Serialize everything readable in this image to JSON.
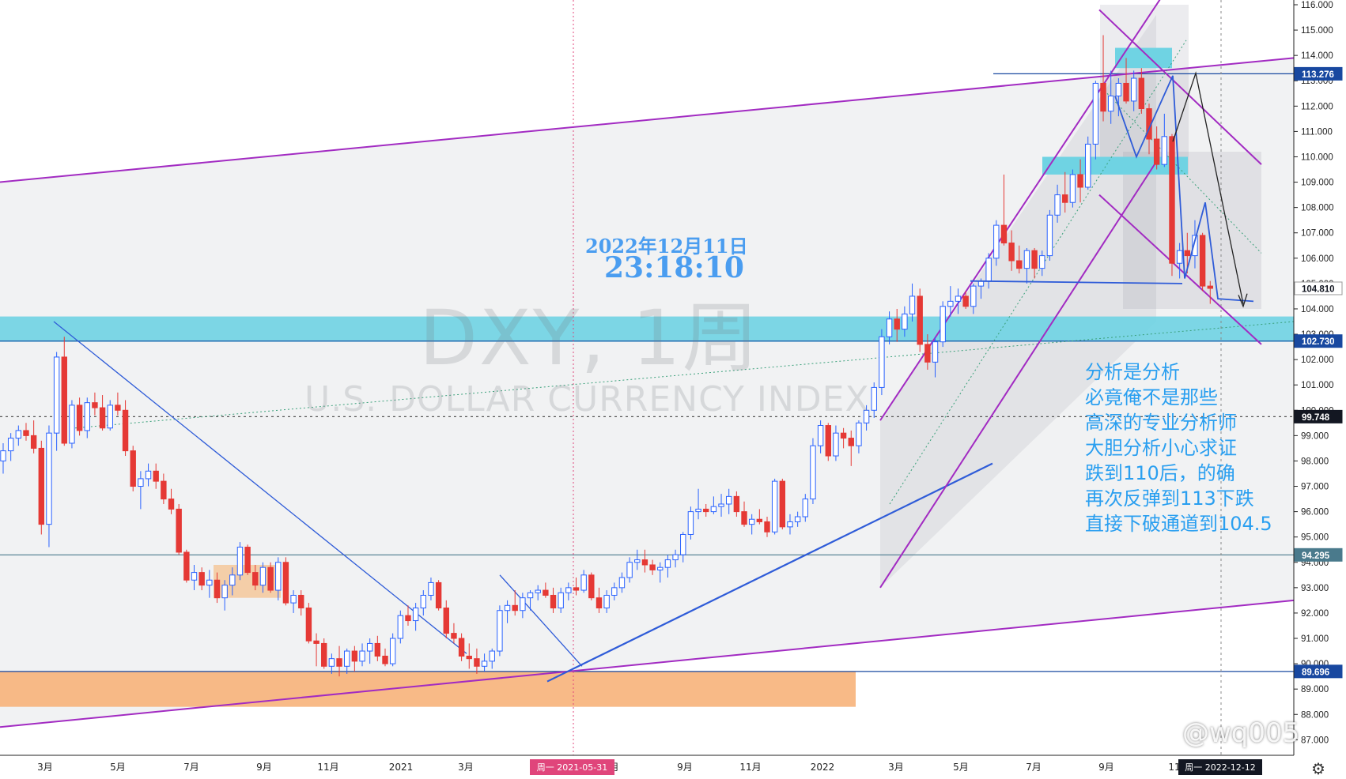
{
  "chart_data": {
    "type": "candlestick",
    "symbol_watermark": "DXY, 1周",
    "name_watermark": "U.S. DOLLAR CURRENCY INDEX",
    "ylim": [
      86.2,
      116.0
    ],
    "y_ticks": [
      "87.000",
      "88.000",
      "89.000",
      "90.000",
      "91.000",
      "92.000",
      "93.000",
      "94.000",
      "95.000",
      "96.000",
      "97.000",
      "98.000",
      "99.000",
      "100.000",
      "101.000",
      "102.000",
      "103.000",
      "104.000",
      "105.000",
      "106.000",
      "107.000",
      "108.000",
      "109.000",
      "110.000",
      "111.000",
      "112.000",
      "113.000",
      "114.000",
      "115.000",
      "116.000"
    ],
    "price_badges": [
      {
        "label": "113.276",
        "value": 113.276,
        "color": "#1848a0"
      },
      {
        "label": "104.810",
        "value": 104.81,
        "color": "#ffffff"
      },
      {
        "label": "102.730",
        "value": 102.73,
        "color": "#1848a0"
      },
      {
        "label": "99.748",
        "value": 99.748,
        "color": "#131722"
      },
      {
        "label": "94.295",
        "value": 94.295,
        "color": "#4a7a8c"
      },
      {
        "label": "89.696",
        "value": 89.696,
        "color": "#1848a0"
      }
    ],
    "x_ticks": [
      "3月",
      "5月",
      "7月",
      "9月",
      "11月",
      "2021",
      "3月",
      "5月",
      "7月",
      "9月",
      "11月",
      "2022",
      "3月",
      "5月",
      "7月",
      "9月",
      "11"
    ],
    "crosshair_labels": [
      "周一 2021-05-31",
      "周一 2022-12-12"
    ],
    "candles": [
      [
        98.0,
        98.7,
        97.5,
        98.4
      ],
      [
        98.4,
        99.1,
        98.0,
        98.9
      ],
      [
        98.9,
        99.4,
        98.6,
        99.2
      ],
      [
        99.2,
        99.5,
        98.8,
        99.0
      ],
      [
        99.0,
        99.6,
        98.3,
        98.5
      ],
      [
        98.5,
        98.8,
        95.1,
        95.5
      ],
      [
        95.5,
        99.4,
        94.6,
        99.1
      ],
      [
        99.1,
        102.3,
        98.4,
        102.1
      ],
      [
        102.1,
        102.9,
        98.6,
        98.7
      ],
      [
        98.7,
        100.4,
        98.5,
        100.2
      ],
      [
        100.2,
        100.5,
        99.0,
        99.2
      ],
      [
        99.2,
        100.5,
        98.9,
        100.3
      ],
      [
        100.3,
        100.7,
        99.8,
        100.1
      ],
      [
        100.1,
        100.6,
        99.2,
        99.3
      ],
      [
        99.3,
        100.4,
        99.2,
        100.2
      ],
      [
        100.2,
        100.7,
        99.8,
        100.0
      ],
      [
        100.0,
        100.4,
        98.2,
        98.4
      ],
      [
        98.4,
        98.6,
        96.8,
        97.0
      ],
      [
        97.0,
        97.6,
        96.1,
        97.3
      ],
      [
        97.3,
        97.9,
        97.0,
        97.6
      ],
      [
        97.6,
        97.9,
        96.9,
        97.2
      ],
      [
        97.2,
        97.5,
        96.3,
        96.5
      ],
      [
        96.5,
        96.9,
        95.9,
        96.1
      ],
      [
        96.1,
        96.3,
        94.3,
        94.4
      ],
      [
        94.4,
        94.5,
        93.2,
        93.3
      ],
      [
        93.3,
        93.9,
        92.9,
        93.6
      ],
      [
        93.6,
        93.8,
        92.9,
        93.1
      ],
      [
        93.1,
        93.7,
        92.6,
        93.3
      ],
      [
        93.3,
        93.6,
        92.4,
        92.6
      ],
      [
        92.6,
        93.3,
        92.1,
        93.1
      ],
      [
        93.1,
        93.8,
        92.7,
        93.5
      ],
      [
        93.5,
        94.8,
        93.3,
        94.6
      ],
      [
        94.6,
        94.7,
        93.5,
        93.6
      ],
      [
        93.6,
        93.9,
        92.9,
        93.1
      ],
      [
        93.1,
        94.0,
        92.8,
        93.8
      ],
      [
        93.8,
        94.0,
        92.8,
        92.9
      ],
      [
        92.9,
        94.2,
        92.5,
        94.0
      ],
      [
        94.0,
        94.2,
        92.3,
        92.4
      ],
      [
        92.4,
        92.9,
        92.0,
        92.7
      ],
      [
        92.7,
        92.9,
        91.9,
        92.2
      ],
      [
        92.2,
        92.4,
        90.8,
        90.9
      ],
      [
        90.9,
        91.2,
        89.9,
        90.8
      ],
      [
        90.8,
        91.0,
        89.8,
        89.9
      ],
      [
        89.9,
        90.4,
        89.6,
        90.2
      ],
      [
        90.2,
        90.7,
        89.5,
        89.9
      ],
      [
        89.9,
        90.6,
        89.6,
        90.5
      ],
      [
        90.5,
        90.7,
        89.7,
        90.1
      ],
      [
        90.1,
        90.8,
        89.9,
        90.5
      ],
      [
        90.5,
        91.0,
        90.0,
        90.8
      ],
      [
        90.8,
        91.1,
        90.1,
        90.3
      ],
      [
        90.3,
        90.6,
        89.9,
        90.0
      ],
      [
        90.0,
        91.2,
        89.9,
        91.0
      ],
      [
        91.0,
        92.1,
        90.8,
        91.9
      ],
      [
        91.9,
        92.3,
        91.5,
        91.7
      ],
      [
        91.7,
        92.4,
        91.3,
        92.2
      ],
      [
        92.2,
        92.9,
        91.9,
        92.7
      ],
      [
        92.7,
        93.4,
        92.5,
        93.2
      ],
      [
        93.2,
        93.3,
        92.1,
        92.2
      ],
      [
        92.2,
        92.5,
        91.0,
        91.2
      ],
      [
        91.2,
        91.6,
        90.8,
        91.0
      ],
      [
        91.0,
        91.2,
        90.1,
        90.3
      ],
      [
        90.3,
        90.8,
        89.8,
        90.2
      ],
      [
        90.2,
        90.6,
        89.6,
        89.9
      ],
      [
        89.9,
        90.4,
        89.7,
        90.1
      ],
      [
        90.1,
        90.6,
        89.8,
        90.5
      ],
      [
        90.5,
        92.3,
        90.3,
        92.1
      ],
      [
        92.1,
        92.5,
        91.6,
        92.3
      ],
      [
        92.3,
        92.9,
        91.9,
        92.1
      ],
      [
        92.1,
        92.8,
        91.8,
        92.6
      ],
      [
        92.6,
        92.9,
        92.1,
        92.8
      ],
      [
        92.8,
        93.1,
        92.5,
        92.9
      ],
      [
        92.9,
        93.2,
        92.6,
        92.7
      ],
      [
        92.7,
        93.0,
        92.0,
        92.2
      ],
      [
        92.2,
        93.0,
        92.0,
        92.8
      ],
      [
        92.8,
        93.2,
        92.5,
        93.0
      ],
      [
        93.0,
        93.4,
        92.7,
        92.9
      ],
      [
        92.9,
        93.7,
        92.8,
        93.5
      ],
      [
        93.5,
        93.6,
        92.5,
        92.6
      ],
      [
        92.6,
        93.0,
        92.0,
        92.2
      ],
      [
        92.2,
        92.9,
        92.0,
        92.7
      ],
      [
        92.7,
        93.2,
        92.5,
        93.0
      ],
      [
        93.0,
        93.6,
        92.8,
        93.4
      ],
      [
        93.4,
        94.2,
        93.2,
        94.0
      ],
      [
        94.0,
        94.5,
        93.7,
        94.1
      ],
      [
        94.1,
        94.5,
        93.6,
        93.9
      ],
      [
        93.9,
        94.1,
        93.5,
        93.7
      ],
      [
        93.7,
        94.0,
        93.2,
        93.8
      ],
      [
        93.8,
        94.3,
        93.4,
        94.1
      ],
      [
        94.1,
        94.5,
        93.8,
        94.3
      ],
      [
        94.3,
        95.2,
        94.0,
        95.1
      ],
      [
        95.1,
        96.2,
        94.9,
        96.0
      ],
      [
        96.0,
        96.9,
        95.7,
        96.1
      ],
      [
        96.1,
        96.3,
        95.8,
        96.0
      ],
      [
        96.0,
        96.6,
        95.9,
        96.2
      ],
      [
        96.2,
        96.7,
        95.8,
        96.3
      ],
      [
        96.3,
        96.9,
        95.9,
        96.6
      ],
      [
        96.6,
        96.8,
        95.8,
        96.0
      ],
      [
        96.0,
        96.4,
        95.4,
        95.5
      ],
      [
        95.5,
        95.9,
        95.1,
        95.7
      ],
      [
        95.7,
        96.1,
        95.5,
        95.6
      ],
      [
        95.6,
        95.8,
        95.0,
        95.2
      ],
      [
        95.2,
        97.3,
        95.1,
        97.2
      ],
      [
        97.2,
        97.3,
        95.3,
        95.4
      ],
      [
        95.4,
        95.9,
        95.1,
        95.6
      ],
      [
        95.6,
        96.0,
        95.4,
        95.8
      ],
      [
        95.8,
        96.7,
        95.6,
        96.5
      ],
      [
        96.5,
        98.9,
        96.3,
        98.6
      ],
      [
        98.6,
        99.6,
        98.3,
        99.4
      ],
      [
        99.4,
        99.5,
        98.0,
        98.2
      ],
      [
        98.2,
        99.4,
        98.0,
        99.1
      ],
      [
        99.1,
        99.3,
        98.5,
        98.9
      ],
      [
        98.9,
        99.2,
        97.8,
        98.6
      ],
      [
        98.6,
        99.6,
        98.3,
        99.5
      ],
      [
        99.5,
        100.2,
        99.2,
        100.0
      ],
      [
        100.0,
        101.1,
        99.7,
        100.9
      ],
      [
        100.9,
        103.2,
        100.6,
        102.9
      ],
      [
        102.9,
        103.9,
        102.6,
        103.6
      ],
      [
        103.6,
        104.0,
        102.7,
        103.2
      ],
      [
        103.2,
        104.1,
        102.9,
        103.8
      ],
      [
        103.8,
        105.0,
        103.5,
        104.5
      ],
      [
        104.5,
        104.8,
        102.3,
        102.6
      ],
      [
        102.6,
        103.0,
        101.6,
        101.9
      ],
      [
        101.9,
        102.9,
        101.3,
        102.7
      ],
      [
        102.7,
        104.3,
        102.5,
        104.1
      ],
      [
        104.1,
        104.9,
        103.7,
        104.3
      ],
      [
        104.3,
        104.8,
        103.8,
        104.5
      ],
      [
        104.5,
        104.7,
        104.0,
        104.1
      ],
      [
        104.1,
        105.0,
        103.8,
        104.9
      ],
      [
        104.9,
        105.2,
        104.4,
        105.1
      ],
      [
        105.1,
        106.2,
        104.8,
        106.0
      ],
      [
        106.0,
        107.5,
        105.7,
        107.3
      ],
      [
        107.3,
        109.3,
        106.5,
        106.6
      ],
      [
        106.6,
        107.1,
        105.5,
        105.9
      ],
      [
        105.9,
        106.5,
        105.4,
        105.6
      ],
      [
        105.6,
        106.4,
        105.0,
        106.3
      ],
      [
        106.3,
        106.4,
        105.2,
        105.6
      ],
      [
        105.6,
        106.3,
        105.3,
        106.1
      ],
      [
        106.1,
        107.9,
        105.9,
        107.7
      ],
      [
        107.7,
        108.9,
        107.4,
        108.5
      ],
      [
        108.5,
        109.4,
        107.8,
        108.2
      ],
      [
        108.2,
        109.5,
        108.0,
        109.3
      ],
      [
        109.3,
        109.9,
        108.2,
        108.8
      ],
      [
        108.8,
        110.8,
        108.7,
        110.5
      ],
      [
        110.5,
        113.0,
        109.9,
        112.9
      ],
      [
        112.9,
        114.8,
        111.4,
        111.8
      ],
      [
        111.8,
        113.4,
        111.3,
        112.4
      ],
      [
        112.4,
        113.1,
        111.6,
        112.9
      ],
      [
        112.9,
        113.9,
        112.1,
        112.2
      ],
      [
        112.2,
        113.4,
        111.8,
        113.1
      ],
      [
        113.1,
        113.5,
        111.7,
        111.9
      ],
      [
        111.9,
        112.1,
        110.1,
        110.7
      ],
      [
        110.7,
        111.2,
        109.5,
        109.7
      ],
      [
        109.7,
        111.7,
        109.6,
        110.8
      ],
      [
        110.8,
        110.9,
        105.3,
        105.8
      ],
      [
        105.8,
        106.6,
        105.2,
        106.3
      ],
      [
        106.3,
        107.0,
        105.4,
        106.1
      ],
      [
        106.1,
        107.5,
        105.6,
        106.9
      ],
      [
        106.9,
        107.0,
        104.7,
        104.9
      ],
      [
        104.9,
        105.1,
        104.2,
        104.81
      ]
    ]
  },
  "annotations": {
    "date": "2022年12月11日",
    "time": "23:18:10",
    "analysis_lines": [
      "分析是分析",
      "必竟俺不是那些",
      "高深的专业分析师",
      "大胆分析小心求证",
      "跌到110后，的确",
      "再次反弹到113下跌",
      "直接下破通道到104.5"
    ],
    "credit": "@wq005"
  },
  "colors": {
    "up": "#2962ff",
    "down": "#e53935",
    "channel": "#a22bc2",
    "trend": "#2f5cd8",
    "zone_cyan": "#6fd3e3",
    "zone_orange": "#f7b27a"
  },
  "icons": {
    "settings": "gear-icon"
  }
}
